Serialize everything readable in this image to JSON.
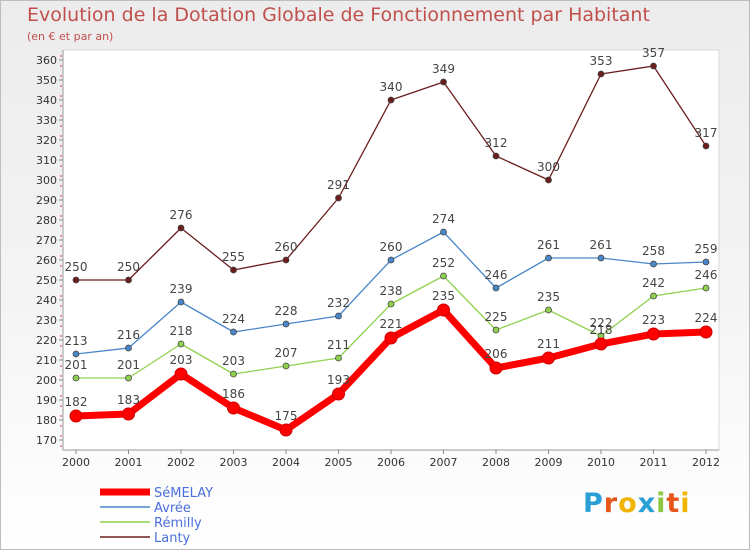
{
  "chart_data": {
    "type": "line",
    "title": "Evolution de la Dotation Globale de Fonctionnement par Habitant",
    "subtitle": "(en € et par an)",
    "x": [
      "2000",
      "2001",
      "2002",
      "2003",
      "2004",
      "2005",
      "2006",
      "2007",
      "2008",
      "2009",
      "2010",
      "2011",
      "2012"
    ],
    "y_ticks": [
      "170",
      "180",
      "190",
      "200",
      "210",
      "220",
      "230",
      "240",
      "250",
      "260",
      "270",
      "280",
      "290",
      "300",
      "310",
      "320",
      "330",
      "340",
      "350",
      "360"
    ],
    "ylim": [
      170,
      360
    ],
    "grid": false,
    "legend_position": "bottom-left",
    "series": [
      {
        "name": "SéMELAY",
        "color": "#ff0000",
        "values": [
          182,
          183,
          203,
          186,
          175,
          193,
          221,
          235,
          206,
          211,
          218,
          223,
          224
        ]
      },
      {
        "name": "Avrée",
        "color": "#4a86c8",
        "values": [
          213,
          216,
          239,
          224,
          228,
          232,
          260,
          274,
          246,
          261,
          261,
          258,
          259
        ]
      },
      {
        "name": "Rémilly",
        "color": "#8fd14f",
        "values": [
          201,
          201,
          218,
          203,
          207,
          211,
          238,
          252,
          225,
          235,
          222,
          242,
          246
        ]
      },
      {
        "name": "Lanty",
        "color": "#6b1d1d",
        "values": [
          250,
          250,
          276,
          255,
          260,
          291,
          340,
          349,
          312,
          300,
          353,
          357,
          317
        ]
      }
    ]
  },
  "logo": {
    "letters": [
      "P",
      "r",
      "o",
      "x",
      "i",
      "t",
      "i"
    ],
    "colors": [
      "#2a9fd6",
      "#e8551b",
      "#f0b400",
      "#2a9fd6",
      "#8cc63f",
      "#e8551b",
      "#f0b400"
    ]
  }
}
